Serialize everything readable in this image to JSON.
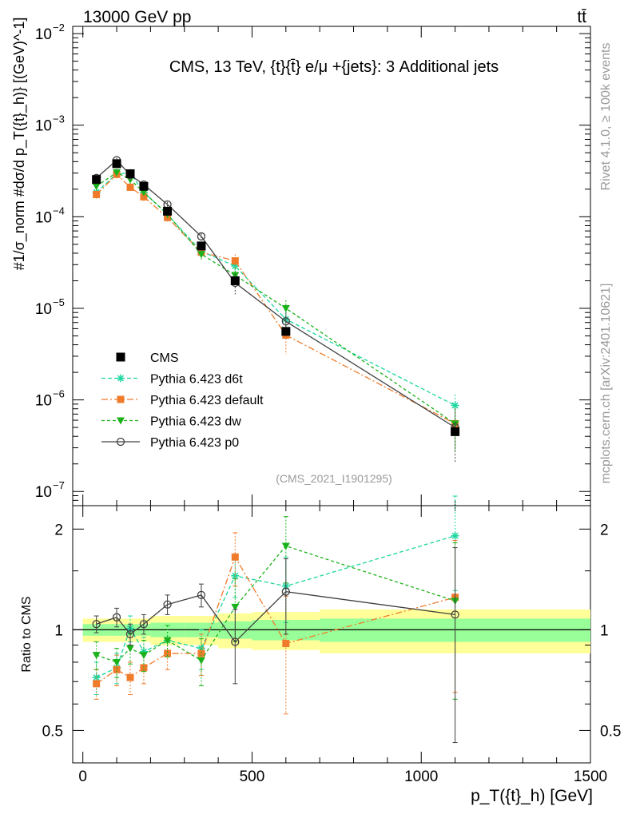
{
  "header": {
    "energy_label": "13000 GeV pp",
    "process_label": "tt̄"
  },
  "side": {
    "rivet_label": "Rivet 4.1.0, ≥ 100k events",
    "mcplots_label": "mcplots.cern.ch [arXiv:2401.10621]"
  },
  "colors": {
    "cms": "#000000",
    "d6t": "#1dd6a0",
    "default": "#f07b2b",
    "dw": "#1ab21a",
    "p0": "#404040",
    "band_outer": "#ffff99",
    "band_inner": "#99ff99"
  },
  "chart_data": {
    "type": "scatter",
    "title": "CMS, 13 TeV, {t}{t̄} e/μ +{jets}: 3 Additional jets",
    "analysis_id": "(CMS_2021_I1901295)",
    "xlabel": "p_T({t}_h) [GeV]",
    "ylabel_main": "#1/σ_norm #dσ/d p_T({t}_h)} [(GeV)^-1]",
    "ylabel_ratio": "Ratio to CMS",
    "xlim": [
      -30,
      1500
    ],
    "ylim_main": [
      7e-08,
      0.012
    ],
    "ylim_ratio": [
      0.4,
      2.35
    ],
    "x_ticks": [
      "0",
      "500",
      "1000",
      "1500"
    ],
    "y_ticks_main": [
      "10^-7",
      "10^-6",
      "10^-5",
      "10^-4",
      "10^-3",
      "10^-2"
    ],
    "y_ticks_ratio": [
      "0.5",
      "1",
      "2"
    ],
    "x": [
      40,
      100,
      140,
      180,
      250,
      350,
      450,
      600,
      1100
    ],
    "bins": [
      [
        0,
        80
      ],
      [
        80,
        120
      ],
      [
        120,
        160
      ],
      [
        160,
        200
      ],
      [
        200,
        300
      ],
      [
        300,
        400
      ],
      [
        400,
        500
      ],
      [
        500,
        700
      ],
      [
        700,
        1500
      ]
    ],
    "cms": {
      "name": "CMS",
      "values": [
        0.000255,
        0.00038,
        0.000295,
        0.000215,
        0.000115,
        4.8e-05,
        2e-05,
        5.6e-06,
        4.5e-07
      ],
      "band_inner": [
        0.04,
        0.04,
        0.04,
        0.04,
        0.05,
        0.05,
        0.06,
        0.07,
        0.08
      ],
      "band_outer": [
        0.08,
        0.08,
        0.08,
        0.08,
        0.1,
        0.1,
        0.12,
        0.13,
        0.15
      ]
    },
    "series": [
      {
        "name": "Pythia 6.423 d6t",
        "key": "d6t",
        "values": [
          0.000185,
          0.000295,
          0.0003,
          0.000185,
          0.000106,
          4.2e-05,
          2.9e-05,
          7.6e-06,
          8.7e-07
        ],
        "ratio": [
          0.72,
          0.77,
          1.01,
          0.86,
          0.93,
          0.88,
          1.45,
          1.35,
          1.91
        ],
        "ratio_err": [
          0.08,
          0.08,
          0.09,
          0.09,
          0.1,
          0.12,
          0.2,
          0.3,
          0.6
        ]
      },
      {
        "name": "Pythia 6.423 default",
        "key": "default",
        "values": [
          0.000175,
          0.00029,
          0.00021,
          0.000165,
          9.8e-05,
          4.1e-05,
          3.3e-05,
          5.1e-06,
          5.5e-07
        ],
        "ratio": [
          0.69,
          0.76,
          0.72,
          0.77,
          0.85,
          0.85,
          1.65,
          0.91,
          1.25
        ],
        "ratio_err": [
          0.07,
          0.08,
          0.08,
          0.08,
          0.09,
          0.12,
          0.3,
          0.35,
          0.6
        ]
      },
      {
        "name": "Pythia 6.423 dw",
        "key": "dw",
        "values": [
          0.000215,
          0.000305,
          0.000255,
          0.000185,
          0.000107,
          3.9e-05,
          2.3e-05,
          1e-05,
          5.5e-07
        ],
        "ratio": [
          0.84,
          0.8,
          0.88,
          0.84,
          0.93,
          0.81,
          1.17,
          1.78,
          1.22
        ],
        "ratio_err": [
          0.08,
          0.08,
          0.09,
          0.09,
          0.1,
          0.13,
          0.25,
          0.4,
          0.6
        ]
      },
      {
        "name": "Pythia 6.423 p0",
        "key": "p0",
        "values": [
          0.000265,
          0.000415,
          0.000285,
          0.000225,
          0.000136,
          6.1e-05,
          1.9e-05,
          7.2e-06,
          5e-07
        ],
        "ratio": [
          1.04,
          1.09,
          0.97,
          1.04,
          1.19,
          1.27,
          0.92,
          1.3,
          1.11
        ],
        "ratio_err": [
          0.06,
          0.07,
          0.07,
          0.07,
          0.08,
          0.1,
          0.23,
          0.33,
          0.65
        ]
      }
    ]
  }
}
